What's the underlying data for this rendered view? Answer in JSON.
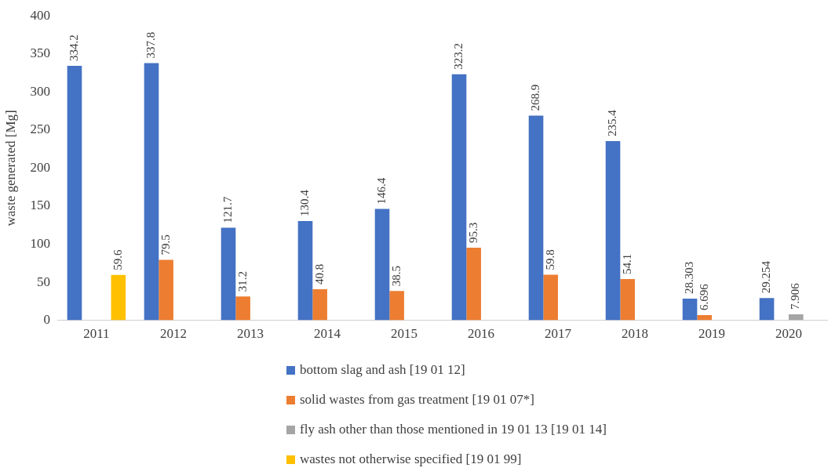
{
  "chart_data": {
    "type": "bar",
    "ylabel": "waste generated [Mg]",
    "categories": [
      "2011",
      "2012",
      "2013",
      "2014",
      "2015",
      "2016",
      "2017",
      "2018",
      "2019",
      "2020"
    ],
    "series": [
      {
        "name": "bottom slag and ash [19 01 12]",
        "color": "#4472c4",
        "values": [
          334.2,
          337.8,
          121.7,
          130.4,
          146.4,
          323.2,
          268.9,
          235.4,
          28.303,
          29.254
        ]
      },
      {
        "name": "solid wastes from gas treatment [19 01 07*]",
        "color": "#ed7d31",
        "values": [
          null,
          79.5,
          31.2,
          40.8,
          38.5,
          95.3,
          59.8,
          54.1,
          6.696,
          null
        ]
      },
      {
        "name": "fly ash other than those mentioned in 19 01 13 [19 01 14]",
        "color": "#a5a5a5",
        "values": [
          null,
          null,
          null,
          null,
          null,
          null,
          null,
          null,
          null,
          7.906
        ]
      },
      {
        "name": "wastes not otherwise specified [19 01 99]",
        "color": "#ffc000",
        "values": [
          59.6,
          null,
          null,
          null,
          null,
          null,
          null,
          null,
          null,
          null
        ]
      }
    ],
    "ylim": [
      0,
      400
    ],
    "yticks": [
      0,
      50,
      100,
      150,
      200,
      250,
      300,
      350,
      400
    ],
    "grid": false,
    "legend": "bottom",
    "data_labels": true
  }
}
